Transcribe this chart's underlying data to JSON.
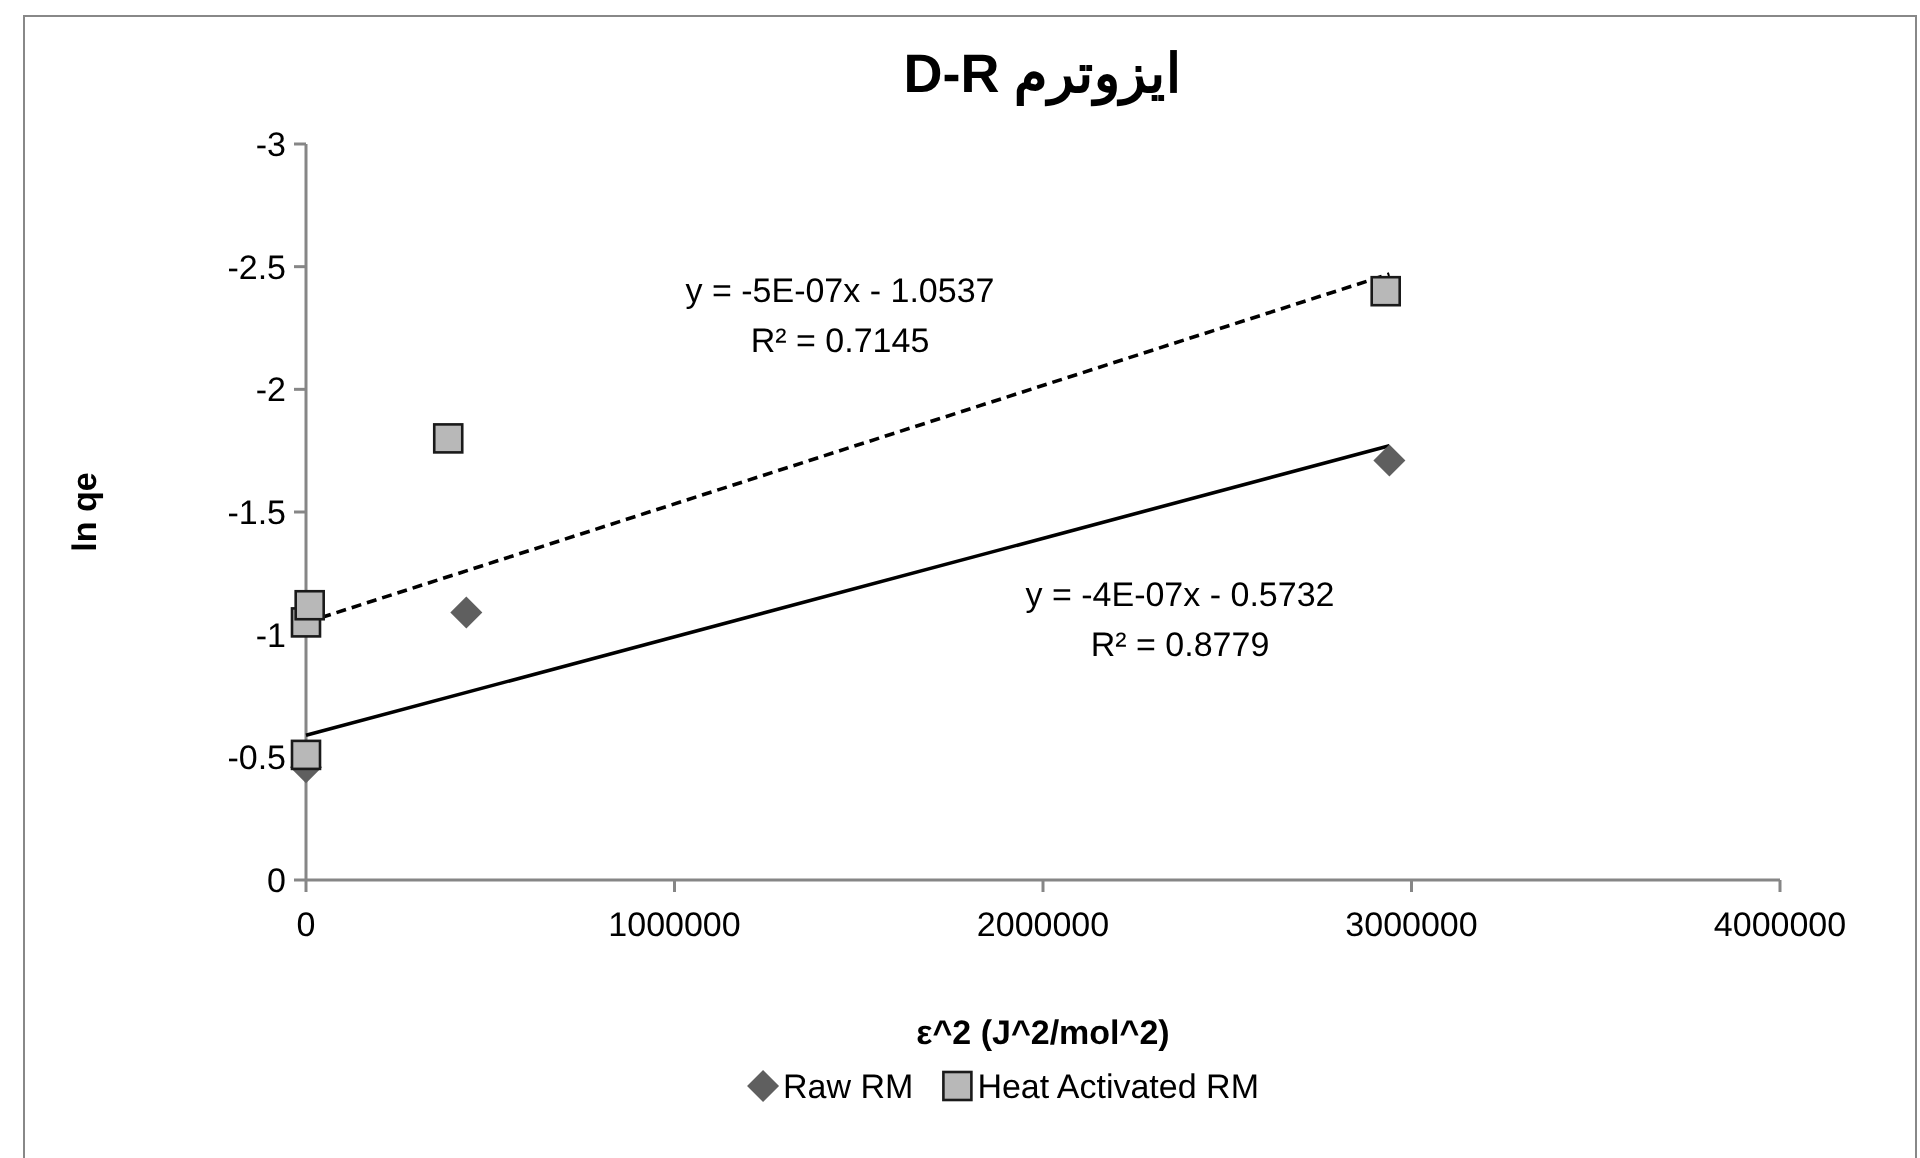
{
  "chart_data": {
    "type": "scatter",
    "title": "ایزوترم D-R",
    "xlabel": "ε^2 (J^2/mol^2)",
    "ylabel": "ln qe",
    "xlim": [
      0,
      4000000
    ],
    "xticks": [
      0,
      1000000,
      2000000,
      3000000,
      4000000
    ],
    "ylim": [
      0,
      -3
    ],
    "yticks": [
      0,
      -0.5,
      -1,
      -1.5,
      -2,
      -2.5,
      -3
    ],
    "grid": false,
    "legend": "bottom",
    "series": [
      {
        "name": "Raw RM",
        "color": "#5f5f5f",
        "marker": "diamond",
        "x": [
          0,
          435000,
          2940000
        ],
        "values": [
          -0.46,
          -1.09,
          -1.71
        ]
      },
      {
        "name": "Heat Activated RM",
        "color": "#b8b8b8",
        "marker": "square",
        "x": [
          0,
          0,
          10000,
          386000,
          2930000
        ],
        "values": [
          -0.51,
          -1.05,
          -1.12,
          -1.8,
          -2.4
        ]
      },
      {
        "type": "line",
        "color": "#000000",
        "marker": "none",
        "line_style": "dashed",
        "x": [
          0,
          2940000
        ],
        "values": [
          -1.05,
          -2.47
        ]
      },
      {
        "type": "line",
        "color": "#000000",
        "marker": "none",
        "line_style": "solid",
        "x": [
          0,
          2940000
        ],
        "values": [
          -0.59,
          -1.77
        ]
      }
    ],
    "annotations": [
      "y = -5E-07x  - 1.0537",
      "R² = 0.7145",
      "y = -4E-07x  - 0.5732",
      "R² = 0.8779"
    ]
  }
}
